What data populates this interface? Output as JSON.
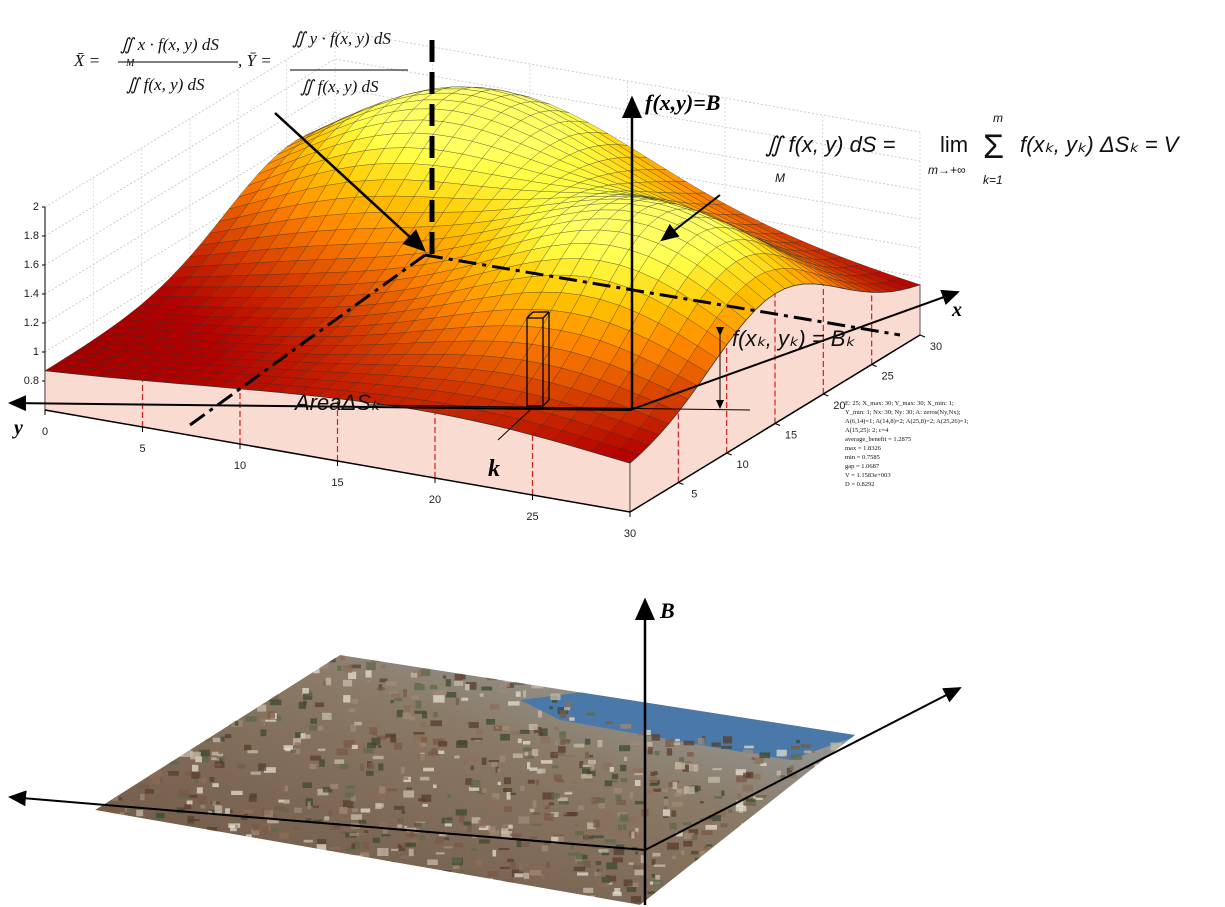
{
  "surface_plot": {
    "z_ticks": [
      0.8,
      1,
      1.2,
      1.4,
      1.6,
      1.8,
      2
    ],
    "x_ticks": [
      0,
      5,
      10,
      15,
      20,
      25,
      30
    ],
    "y_ticks": [
      5,
      10,
      15,
      20,
      25,
      30
    ],
    "axis_labels": {
      "vertical": "f(x,y)=B",
      "x": "x",
      "y": "y"
    },
    "labels": {
      "cell": "k",
      "area": "AreaΔSₖ",
      "height": "f(xₖ, yₖ) = Bₖ"
    },
    "centroid_formula": {
      "x_lhs": "X̄ =",
      "x_numerator": "∬ x · f(x, y) dS",
      "x_denominator": "∬ f(x, y) dS",
      "y_lhs": ", Ȳ =",
      "y_numerator": "∬ y · f(x, y) dS",
      "y_denominator": "∬ f(x, y) dS",
      "domain": "M"
    },
    "volume_formula": {
      "integral": "∬ f(x, y) dS =",
      "domain": "M",
      "limit": "lim",
      "limit_sub": "m→+∞",
      "sum": "Σ",
      "sum_top": "m",
      "sum_bottom": "k=1",
      "term": "f(xₖ, yₖ) ΔSₖ = V"
    },
    "info": [
      "E: 25; X_max: 30; Y_max: 30; X_min: 1;",
      "Y_min: 1; Nx: 30; Ny: 30; A: zeros(Ny,Nx);",
      "A(6,14)=1; A(14,8)=2; A(25,8)=2; A(25,26)=1;",
      "A(15,25): 2;     c=4",
      "average_benefit = 1.2875",
      "max = 1.8326",
      "min = 0.7585",
      "gap = 1.0687",
      "V = 1.1583e+003",
      "D = 0.8292"
    ]
  },
  "photo_plane": {
    "axis_label": "B"
  }
}
